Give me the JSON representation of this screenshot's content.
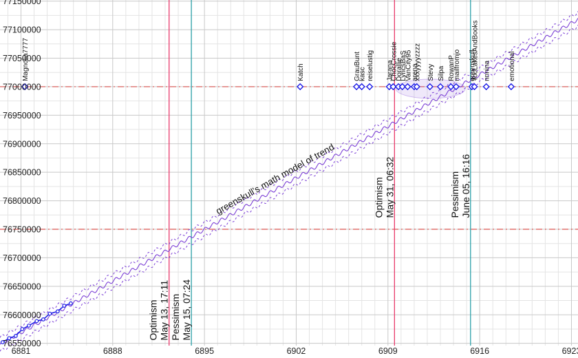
{
  "chart_data": {
    "type": "line",
    "title": "",
    "xlabel": "",
    "ylabel": "",
    "xlim": [
      6879.4,
      6923.5
    ],
    "ylim": [
      76546000,
      77152000
    ],
    "x_ticks": [
      6881,
      6888,
      6895,
      6902,
      6909,
      6916,
      6923
    ],
    "y_ticks": [
      76550000,
      76600000,
      76650000,
      76700000,
      76750000,
      76800000,
      76850000,
      76900000,
      76950000,
      77000000,
      77050000,
      77100000,
      77150000
    ],
    "grid": true,
    "trend": {
      "label": "greenskull's math model of trend",
      "start": {
        "x": 6879.4,
        "y": 76548000
      },
      "end": {
        "x": 6923.5,
        "y": 77118000
      },
      "band": 12000,
      "wiggle_amplitude": 3000,
      "wiggle_period": 0.62,
      "color": "#7b3fd6"
    },
    "observed_points": [
      {
        "x": 6879.6,
        "y": 76552000
      },
      {
        "x": 6880.1,
        "y": 76559000
      },
      {
        "x": 6880.6,
        "y": 76563000
      },
      {
        "x": 6881.1,
        "y": 76575000
      },
      {
        "x": 6881.6,
        "y": 76581000
      },
      {
        "x": 6882.2,
        "y": 76589000
      },
      {
        "x": 6882.7,
        "y": 76592000
      },
      {
        "x": 6883.2,
        "y": 76602000
      },
      {
        "x": 6883.8,
        "y": 76606000
      },
      {
        "x": 6884.3,
        "y": 76616000
      },
      {
        "x": 6884.8,
        "y": 76620000
      }
    ],
    "target_lines": [
      {
        "y": 77000000,
        "color": "#d9534f"
      },
      {
        "y": 76750000,
        "color": "#d9534f"
      }
    ],
    "prediction_lines": [
      {
        "x": 6892.3,
        "label_line1": "Optimism",
        "label_line2": "May 13, 17:11",
        "color": "#e8386a",
        "label_y": 76555000
      },
      {
        "x": 6894.0,
        "label_line1": "Pessimism",
        "label_line2": "May 15, 07:24",
        "color": "#2aa0a8",
        "label_y": 76555000
      },
      {
        "x": 6909.5,
        "label_line1": "Optimism",
        "label_line2": "May 31, 06:32",
        "color": "#e8386a",
        "label_y": 76770000
      },
      {
        "x": 6915.3,
        "label_line1": "Pessimism",
        "label_line2": "June 05, 16:16",
        "color": "#2aa0a8",
        "label_y": 76770000
      }
    ],
    "guesses_y": 77000000,
    "guesses": [
      {
        "name": "Magnolia7777",
        "x": 6881.3
      },
      {
        "name": "Katch",
        "x": 6902.3
      },
      {
        "name": "GrauBunt",
        "x": 6906.6
      },
      {
        "name": "kasc",
        "x": 6907.0
      },
      {
        "name": "reiselustig",
        "x": 6907.6
      },
      {
        "name": "Jarana",
        "x": 6909.1
      },
      {
        "name": "ChocCrossie",
        "x": 6909.4
      },
      {
        "name": "Dorallie",
        "x": 6909.8
      },
      {
        "name": "LyricsBaS",
        "x": 6910.1
      },
      {
        "name": "VanCity95",
        "x": 6910.5
      },
      {
        "name": "arena",
        "x": 6911.0
      },
      {
        "name": "xxxyyyyzzzz",
        "x": 6911.2
      },
      {
        "name": "Stevy",
        "x": 6912.2
      },
      {
        "name": "Silpa",
        "x": 6913.0
      },
      {
        "name": "RowanP",
        "x": 6913.8
      },
      {
        "name": "mailfromjo",
        "x": 6914.2
      },
      {
        "name": "greenskull",
        "x": 6915.4
      },
      {
        "name": "TooLakesAndBooks",
        "x": 6915.6
      },
      {
        "name": "nnnina",
        "x": 6916.5
      },
      {
        "name": "emotional",
        "x": 6918.4
      }
    ],
    "colors": {
      "grid_major": "#c8c8c8",
      "grid_minor": "#e4e4e4",
      "point": "#1a1ae6",
      "axis_text": "#222222"
    }
  }
}
